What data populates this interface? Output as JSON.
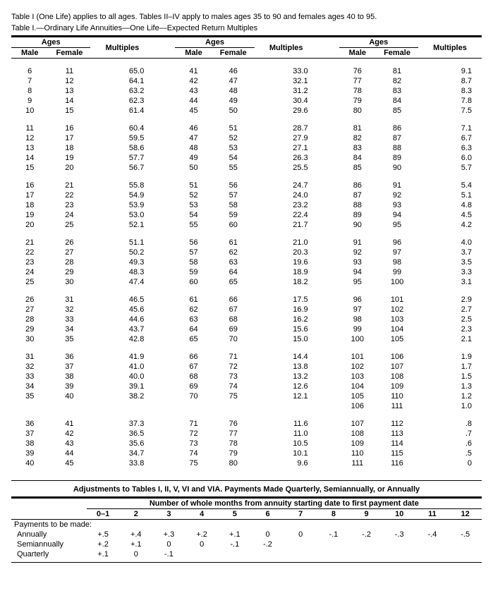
{
  "caption1": "Table I (One Life) applies to all ages. Tables II–IV apply to males ages 35 to 90 and females ages 40 to 95.",
  "caption2": "Table I.—Ordinary Life Annuities—One Life—Expected Return Multiples",
  "headers": {
    "ages": "Ages",
    "multiples": "Multiples",
    "male": "Male",
    "female": "Female"
  },
  "groups": [
    [
      {
        "m1": "6",
        "f1": "11",
        "mu1": "65.0",
        "m2": "41",
        "f2": "46",
        "mu2": "33.0",
        "m3": "76",
        "f3": "81",
        "mu3": "9.1"
      },
      {
        "m1": "7",
        "f1": "12",
        "mu1": "64.1",
        "m2": "42",
        "f2": "47",
        "mu2": "32.1",
        "m3": "77",
        "f3": "82",
        "mu3": "8.7"
      },
      {
        "m1": "8",
        "f1": "13",
        "mu1": "63.2",
        "m2": "43",
        "f2": "48",
        "mu2": "31.2",
        "m3": "78",
        "f3": "83",
        "mu3": "8.3"
      },
      {
        "m1": "9",
        "f1": "14",
        "mu1": "62.3",
        "m2": "44",
        "f2": "49",
        "mu2": "30.4",
        "m3": "79",
        "f3": "84",
        "mu3": "7.8"
      },
      {
        "m1": "10",
        "f1": "15",
        "mu1": "61.4",
        "m2": "45",
        "f2": "50",
        "mu2": "29.6",
        "m3": "80",
        "f3": "85",
        "mu3": "7.5"
      }
    ],
    [
      {
        "m1": "11",
        "f1": "16",
        "mu1": "60.4",
        "m2": "46",
        "f2": "51",
        "mu2": "28.7",
        "m3": "81",
        "f3": "86",
        "mu3": "7.1"
      },
      {
        "m1": "12",
        "f1": "17",
        "mu1": "59.5",
        "m2": "47",
        "f2": "52",
        "mu2": "27.9",
        "m3": "82",
        "f3": "87",
        "mu3": "6.7"
      },
      {
        "m1": "13",
        "f1": "18",
        "mu1": "58.6",
        "m2": "48",
        "f2": "53",
        "mu2": "27.1",
        "m3": "83",
        "f3": "88",
        "mu3": "6.3"
      },
      {
        "m1": "14",
        "f1": "19",
        "mu1": "57.7",
        "m2": "49",
        "f2": "54",
        "mu2": "26.3",
        "m3": "84",
        "f3": "89",
        "mu3": "6.0"
      },
      {
        "m1": "15",
        "f1": "20",
        "mu1": "56.7",
        "m2": "50",
        "f2": "55",
        "mu2": "25.5",
        "m3": "85",
        "f3": "90",
        "mu3": "5.7"
      }
    ],
    [
      {
        "m1": "16",
        "f1": "21",
        "mu1": "55.8",
        "m2": "51",
        "f2": "56",
        "mu2": "24.7",
        "m3": "86",
        "f3": "91",
        "mu3": "5.4"
      },
      {
        "m1": "17",
        "f1": "22",
        "mu1": "54.9",
        "m2": "52",
        "f2": "57",
        "mu2": "24.0",
        "m3": "87",
        "f3": "92",
        "mu3": "5.1"
      },
      {
        "m1": "18",
        "f1": "23",
        "mu1": "53.9",
        "m2": "53",
        "f2": "58",
        "mu2": "23.2",
        "m3": "88",
        "f3": "93",
        "mu3": "4.8"
      },
      {
        "m1": "19",
        "f1": "24",
        "mu1": "53.0",
        "m2": "54",
        "f2": "59",
        "mu2": "22.4",
        "m3": "89",
        "f3": "94",
        "mu3": "4.5"
      },
      {
        "m1": "20",
        "f1": "25",
        "mu1": "52.1",
        "m2": "55",
        "f2": "60",
        "mu2": "21.7",
        "m3": "90",
        "f3": "95",
        "mu3": "4.2"
      }
    ],
    [
      {
        "m1": "21",
        "f1": "26",
        "mu1": "51.1",
        "m2": "56",
        "f2": "61",
        "mu2": "21.0",
        "m3": "91",
        "f3": "96",
        "mu3": "4.0"
      },
      {
        "m1": "22",
        "f1": "27",
        "mu1": "50.2",
        "m2": "57",
        "f2": "62",
        "mu2": "20.3",
        "m3": "92",
        "f3": "97",
        "mu3": "3.7"
      },
      {
        "m1": "23",
        "f1": "28",
        "mu1": "49.3",
        "m2": "58",
        "f2": "63",
        "mu2": "19.6",
        "m3": "93",
        "f3": "98",
        "mu3": "3.5"
      },
      {
        "m1": "24",
        "f1": "29",
        "mu1": "48.3",
        "m2": "59",
        "f2": "64",
        "mu2": "18.9",
        "m3": "94",
        "f3": "99",
        "mu3": "3.3"
      },
      {
        "m1": "25",
        "f1": "30",
        "mu1": "47.4",
        "m2": "60",
        "f2": "65",
        "mu2": "18.2",
        "m3": "95",
        "f3": "100",
        "mu3": "3.1"
      }
    ],
    [
      {
        "m1": "26",
        "f1": "31",
        "mu1": "46.5",
        "m2": "61",
        "f2": "66",
        "mu2": "17.5",
        "m3": "96",
        "f3": "101",
        "mu3": "2.9"
      },
      {
        "m1": "27",
        "f1": "32",
        "mu1": "45.6",
        "m2": "62",
        "f2": "67",
        "mu2": "16.9",
        "m3": "97",
        "f3": "102",
        "mu3": "2.7"
      },
      {
        "m1": "28",
        "f1": "33",
        "mu1": "44.6",
        "m2": "63",
        "f2": "68",
        "mu2": "16.2",
        "m3": "98",
        "f3": "103",
        "mu3": "2.5"
      },
      {
        "m1": "29",
        "f1": "34",
        "mu1": "43.7",
        "m2": "64",
        "f2": "69",
        "mu2": "15.6",
        "m3": "99",
        "f3": "104",
        "mu3": "2.3"
      },
      {
        "m1": "30",
        "f1": "35",
        "mu1": "42.8",
        "m2": "65",
        "f2": "70",
        "mu2": "15.0",
        "m3": "100",
        "f3": "105",
        "mu3": "2.1"
      }
    ],
    [
      {
        "m1": "31",
        "f1": "36",
        "mu1": "41.9",
        "m2": "66",
        "f2": "71",
        "mu2": "14.4",
        "m3": "101",
        "f3": "106",
        "mu3": "1.9"
      },
      {
        "m1": "32",
        "f1": "37",
        "mu1": "41.0",
        "m2": "67",
        "f2": "72",
        "mu2": "13.8",
        "m3": "102",
        "f3": "107",
        "mu3": "1.7"
      },
      {
        "m1": "33",
        "f1": "38",
        "mu1": "40.0",
        "m2": "68",
        "f2": "73",
        "mu2": "13.2",
        "m3": "103",
        "f3": "108",
        "mu3": "1.5"
      },
      {
        "m1": "34",
        "f1": "39",
        "mu1": "39.1",
        "m2": "69",
        "f2": "74",
        "mu2": "12.6",
        "m3": "104",
        "f3": "109",
        "mu3": "1.3"
      },
      {
        "m1": "35",
        "f1": "40",
        "mu1": "38.2",
        "m2": "70",
        "f2": "75",
        "mu2": "12.1",
        "m3": "105",
        "f3": "110",
        "mu3": "1.2"
      },
      {
        "m1": "",
        "f1": "",
        "mu1": "",
        "m2": "",
        "f2": "",
        "mu2": "",
        "m3": "106",
        "f3": "111",
        "mu3": "1.0"
      }
    ],
    [
      {
        "m1": "36",
        "f1": "41",
        "mu1": "37.3",
        "m2": "71",
        "f2": "76",
        "mu2": "11.6",
        "m3": "107",
        "f3": "112",
        "mu3": ".8"
      },
      {
        "m1": "37",
        "f1": "42",
        "mu1": "36.5",
        "m2": "72",
        "f2": "77",
        "mu2": "11.0",
        "m3": "108",
        "f3": "113",
        "mu3": ".7"
      },
      {
        "m1": "38",
        "f1": "43",
        "mu1": "35.6",
        "m2": "73",
        "f2": "78",
        "mu2": "10.5",
        "m3": "109",
        "f3": "114",
        "mu3": ".6"
      },
      {
        "m1": "39",
        "f1": "44",
        "mu1": "34.7",
        "m2": "74",
        "f2": "79",
        "mu2": "10.1",
        "m3": "110",
        "f3": "115",
        "mu3": ".5"
      },
      {
        "m1": "40",
        "f1": "45",
        "mu1": "33.8",
        "m2": "75",
        "f2": "80",
        "mu2": "9.6",
        "m3": "111",
        "f3": "116",
        "mu3": "0"
      }
    ]
  ],
  "adj": {
    "title": "Adjustments to Tables I, II, V, VI and VIA. Payments Made Quarterly, Semiannually, or Annually",
    "subhead": "Number of whole months from annuity starting date to first payment date",
    "cols": [
      "0–1",
      "2",
      "3",
      "4",
      "5",
      "6",
      "7",
      "8",
      "9",
      "10",
      "11",
      "12"
    ],
    "rowhead": "Payments to be made:",
    "rows": [
      {
        "label": "Annually",
        "v": [
          "+.5",
          "+.4",
          "+.3",
          "+.2",
          "+.1",
          "0",
          "0",
          "-.1",
          "-.2",
          "-.3",
          "-.4",
          "-.5"
        ]
      },
      {
        "label": "Semiannually",
        "v": [
          "+.2",
          "+.1",
          "0",
          "0",
          "-.1",
          "-.2",
          "",
          "",
          "",
          "",
          "",
          ""
        ]
      },
      {
        "label": "Quarterly",
        "v": [
          "+.1",
          "0",
          "-.1",
          "",
          "",
          "",
          "",
          "",
          "",
          "",
          "",
          ""
        ]
      }
    ]
  }
}
